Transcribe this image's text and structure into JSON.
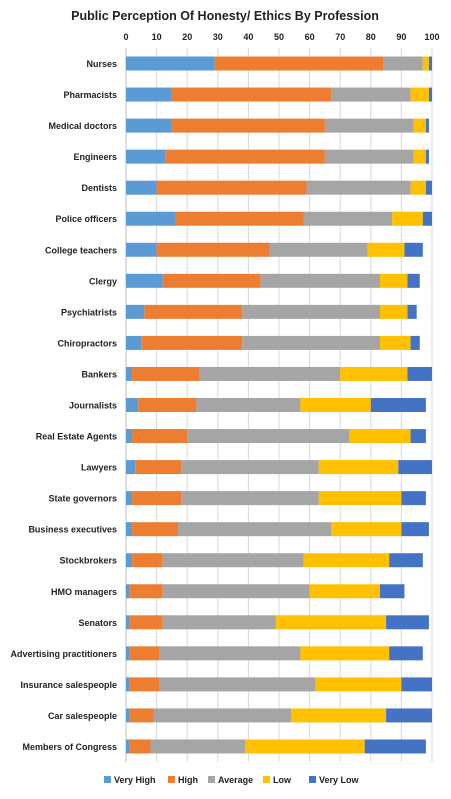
{
  "chart_data": {
    "type": "bar",
    "orientation": "horizontal",
    "stacked": true,
    "title": "Public Perception Of Honesty/ Ethics By Profession",
    "xlim": [
      0,
      100
    ],
    "xticks": [
      "0",
      "10",
      "20",
      "30",
      "40",
      "50",
      "60",
      "70",
      "80",
      "90",
      "100"
    ],
    "grid": true,
    "legend_position": "bottom",
    "categories": [
      "Nurses",
      "Pharmacists",
      "Medical doctors",
      "Engineers",
      "Dentists",
      "Police officers",
      "College teachers",
      "Clergy",
      "Psychiatrists",
      "Chiropractors",
      "Bankers",
      "Journalists",
      "Real Estate Agents",
      "Lawyers",
      "State governors",
      "Business executives",
      "Stockbrokers",
      "HMO managers",
      "Senators",
      "Advertising practitioners",
      "Insurance salespeople",
      "Car salespeople",
      "Members of Congress"
    ],
    "series": [
      {
        "name": "Very High",
        "color": "#5b9bd5",
        "values": [
          29,
          15,
          15,
          13,
          10,
          16,
          10,
          12,
          6,
          5,
          2,
          4,
          2,
          3,
          2,
          2,
          2,
          1,
          1,
          1,
          1,
          1,
          1
        ]
      },
      {
        "name": "High",
        "color": "#ed7d31",
        "values": [
          55,
          52,
          50,
          52,
          49,
          42,
          37,
          32,
          32,
          33,
          22,
          19,
          18,
          15,
          16,
          15,
          10,
          11,
          11,
          10,
          10,
          8,
          7
        ]
      },
      {
        "name": "Average",
        "color": "#a5a5a5",
        "values": [
          13,
          26,
          29,
          29,
          34,
          29,
          32,
          39,
          45,
          45,
          46,
          34,
          53,
          45,
          45,
          50,
          46,
          48,
          37,
          46,
          51,
          45,
          31
        ]
      },
      {
        "name": "Low",
        "color": "#ffc000",
        "values": [
          2,
          6,
          4,
          4,
          5,
          10,
          12,
          9,
          9,
          10,
          22,
          23,
          20,
          26,
          27,
          23,
          28,
          23,
          36,
          29,
          28,
          31,
          39
        ]
      },
      {
        "name": "Very Low",
        "color": "#4472c4",
        "values": [
          1,
          1,
          1,
          1,
          2,
          3,
          6,
          4,
          3,
          3,
          8,
          18,
          5,
          11,
          8,
          9,
          11,
          8,
          14,
          11,
          10,
          15,
          20
        ]
      }
    ]
  }
}
